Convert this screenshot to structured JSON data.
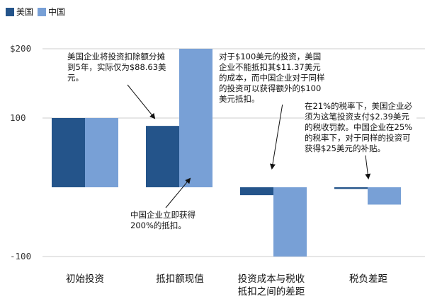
{
  "colors": {
    "us": "#24548a",
    "china": "#78a0d6",
    "grid": "#cccccc",
    "arrow": "#111111"
  },
  "legend": [
    {
      "label": "美国",
      "color": "#24548a"
    },
    {
      "label": "中国",
      "color": "#78a0d6"
    }
  ],
  "chart_data": {
    "type": "bar",
    "categories": [
      "初始投资",
      "抵扣额现值",
      "投资成本与税收\n抵扣之间的差距",
      "税负差距"
    ],
    "series": [
      {
        "name": "美国",
        "values": [
          100,
          88.63,
          -11.37,
          -2.39
        ]
      },
      {
        "name": "中国",
        "values": [
          100,
          200,
          -100,
          -25
        ]
      }
    ],
    "yticks": [
      "$200",
      "100",
      "-100"
    ],
    "ytick_values": [
      200,
      100,
      -100
    ],
    "ylim": [
      -120,
      210
    ],
    "grid": true,
    "legend_position": "top-left"
  },
  "annotations": {
    "a1": "美国企业将投资扣除额分摊到5年，实际仅为$88.63美元。",
    "a2": "中国企业立即获得200%的抵扣。",
    "a3": "对于$100美元的投资，美国企业不能抵扣其$11.37美元的成本，而中国企业对于同样的投资可以获得额外的$100美元抵扣。",
    "a4": "在21%的税率下，美国企业必须为这笔投资支付$2.39美元的税收罚款。中国企业在25%的税率下，对于同样的投资可获得$25美元的补贴。"
  }
}
